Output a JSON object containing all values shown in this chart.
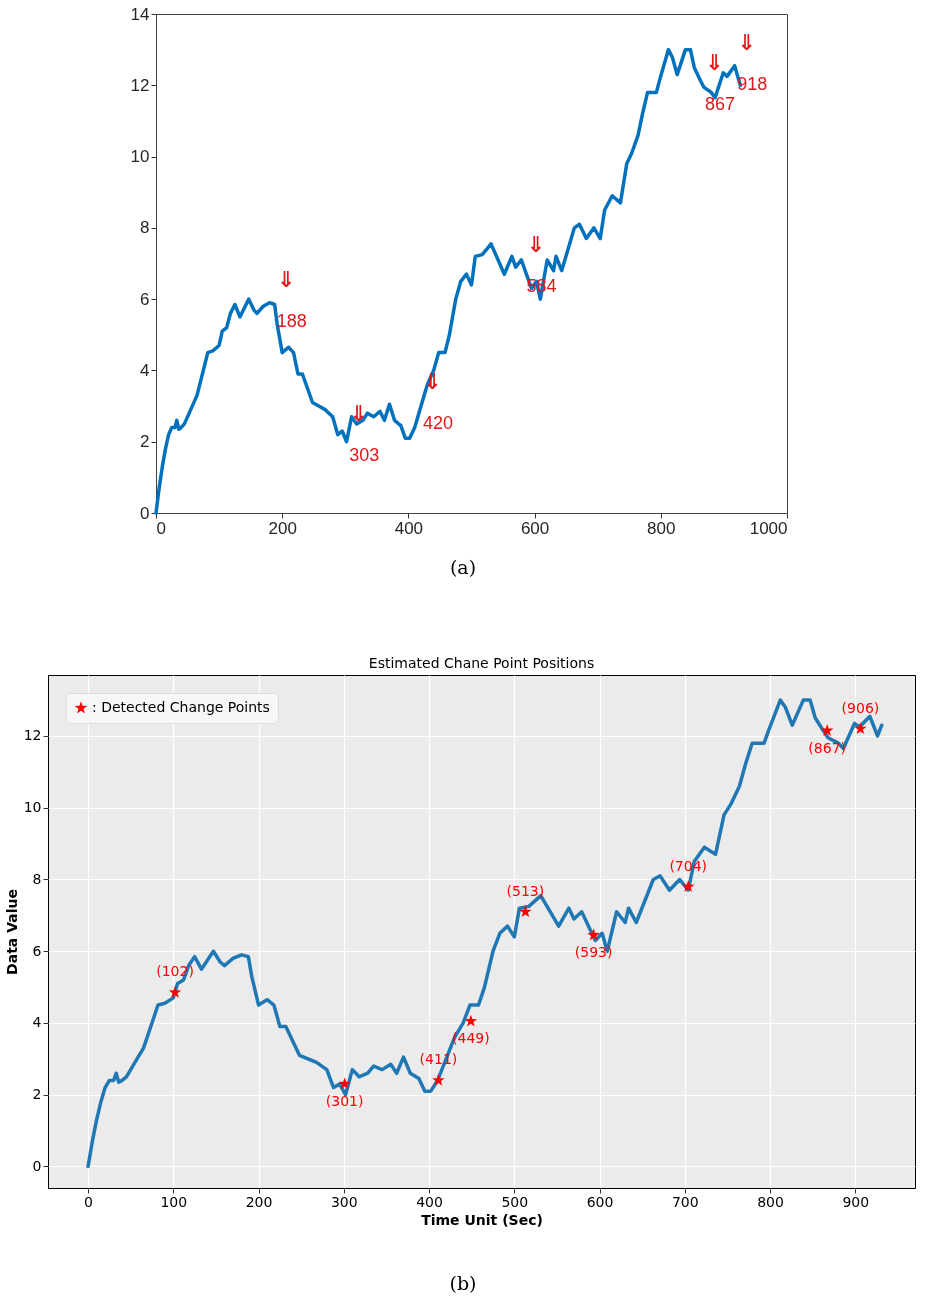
{
  "chart_data": [
    {
      "type": "line",
      "x": [
        0,
        5,
        10,
        15,
        20,
        25,
        30,
        33,
        36,
        40,
        45,
        55,
        65,
        75,
        82,
        90,
        100,
        105,
        112,
        118,
        125,
        133,
        140,
        147,
        155,
        160,
        170,
        180,
        188,
        192,
        200,
        210,
        218,
        225,
        232,
        240,
        248,
        258,
        268,
        280,
        288,
        295,
        302,
        310,
        318,
        328,
        335,
        345,
        355,
        362,
        370,
        378,
        388,
        395,
        402,
        410,
        420,
        430,
        440,
        448,
        458,
        465,
        475,
        483,
        492,
        500,
        506,
        517,
        531,
        552,
        564,
        570,
        579,
        595,
        603,
        609,
        620,
        630,
        634,
        643,
        653,
        663,
        671,
        682,
        694,
        704,
        711,
        723,
        736,
        746,
        754,
        764,
        771,
        779,
        793,
        799,
        812,
        818,
        826,
        839,
        847,
        853,
        861,
        868,
        880,
        886,
        899,
        905,
        917,
        926
      ],
      "series": [
        {
          "color": "#0072bd",
          "values": [
            0,
            0.7,
            1.3,
            1.8,
            2.2,
            2.4,
            2.4,
            2.6,
            2.35,
            2.4,
            2.5,
            2.9,
            3.3,
            4.0,
            4.5,
            4.55,
            4.7,
            5.1,
            5.2,
            5.6,
            5.85,
            5.5,
            5.75,
            6.0,
            5.7,
            5.6,
            5.8,
            5.9,
            5.85,
            5.3,
            4.5,
            4.65,
            4.5,
            3.9,
            3.9,
            3.5,
            3.1,
            3.0,
            2.9,
            2.7,
            2.2,
            2.3,
            2.0,
            2.7,
            2.5,
            2.6,
            2.8,
            2.7,
            2.85,
            2.6,
            3.05,
            2.6,
            2.45,
            2.1,
            2.1,
            2.4,
            3.0,
            3.6,
            4.0,
            4.5,
            4.5,
            5.0,
            6.0,
            6.5,
            6.7,
            6.4,
            7.2,
            7.25,
            7.55,
            6.7,
            7.2,
            6.9,
            7.1,
            6.3,
            6.5,
            6.0,
            7.1,
            6.8,
            7.2,
            6.8,
            7.4,
            8.0,
            8.1,
            7.7,
            8.0,
            7.7,
            8.5,
            8.9,
            8.7,
            9.8,
            10.1,
            10.6,
            11.2,
            11.8,
            11.8,
            12.2,
            13.0,
            12.8,
            12.3,
            13.0,
            13.0,
            12.5,
            12.2,
            11.95,
            11.8,
            11.65,
            12.35,
            12.25,
            12.55,
            12.0
          ]
        }
      ],
      "xlim": [
        0,
        1000
      ],
      "xticks": [
        0,
        200,
        400,
        600,
        800,
        1000
      ],
      "ylim": [
        0,
        14
      ],
      "yticks": [
        0,
        2,
        4,
        6,
        8,
        10,
        12,
        14
      ],
      "annotations": [
        {
          "text": "⇓",
          "x": 188,
          "y": 5.85
        },
        {
          "text": "188",
          "x": 188,
          "y": 5.85
        },
        {
          "text": "⇓",
          "x": 303,
          "y": 2.1
        },
        {
          "text": "303",
          "x": 303,
          "y": 2.1
        },
        {
          "text": "⇓",
          "x": 420,
          "y": 3.0
        },
        {
          "text": "420",
          "x": 420,
          "y": 3.0
        },
        {
          "text": "⇓",
          "x": 584,
          "y": 6.85
        },
        {
          "text": "584",
          "x": 584,
          "y": 6.85
        },
        {
          "text": "⇓",
          "x": 867,
          "y": 11.95
        },
        {
          "text": "867",
          "x": 867,
          "y": 11.95
        },
        {
          "text": "⇓",
          "x": 918,
          "y": 12.5
        },
        {
          "text": "918",
          "x": 918,
          "y": 12.5
        },
        "(a)"
      ]
    },
    {
      "type": "line",
      "title": "Estimated Chane Point Positions",
      "xlabel": "Time Unit (Sec)",
      "ylabel": "Data Value",
      "x": [
        0,
        5,
        10,
        15,
        20,
        25,
        30,
        33,
        36,
        40,
        45,
        55,
        65,
        75,
        82,
        90,
        100,
        105,
        112,
        118,
        125,
        133,
        140,
        147,
        155,
        160,
        170,
        180,
        188,
        192,
        200,
        210,
        218,
        225,
        232,
        240,
        248,
        258,
        268,
        280,
        288,
        295,
        302,
        310,
        318,
        328,
        335,
        345,
        355,
        362,
        370,
        378,
        388,
        395,
        402,
        410,
        420,
        430,
        440,
        448,
        458,
        465,
        475,
        483,
        492,
        500,
        506,
        517,
        531,
        552,
        564,
        570,
        579,
        595,
        603,
        609,
        620,
        630,
        634,
        643,
        653,
        663,
        671,
        682,
        694,
        704,
        711,
        723,
        736,
        746,
        754,
        764,
        771,
        779,
        793,
        799,
        812,
        818,
        826,
        839,
        847,
        853,
        861,
        868,
        880,
        886,
        899,
        905,
        917,
        926,
        931
      ],
      "series": [
        {
          "color": "#1f77b4",
          "values": [
            0,
            0.7,
            1.3,
            1.8,
            2.2,
            2.4,
            2.4,
            2.6,
            2.35,
            2.4,
            2.5,
            2.9,
            3.3,
            4.0,
            4.5,
            4.55,
            4.7,
            5.1,
            5.2,
            5.6,
            5.85,
            5.5,
            5.75,
            6.0,
            5.7,
            5.6,
            5.8,
            5.9,
            5.85,
            5.3,
            4.5,
            4.65,
            4.5,
            3.9,
            3.9,
            3.5,
            3.1,
            3.0,
            2.9,
            2.7,
            2.2,
            2.3,
            2.0,
            2.7,
            2.5,
            2.6,
            2.8,
            2.7,
            2.85,
            2.6,
            3.05,
            2.6,
            2.45,
            2.1,
            2.1,
            2.4,
            3.0,
            3.6,
            4.0,
            4.5,
            4.5,
            5.0,
            6.0,
            6.5,
            6.7,
            6.4,
            7.2,
            7.25,
            7.55,
            6.7,
            7.2,
            6.9,
            7.1,
            6.3,
            6.5,
            6.0,
            7.1,
            6.8,
            7.2,
            6.8,
            7.4,
            8.0,
            8.1,
            7.7,
            8.0,
            7.7,
            8.5,
            8.9,
            8.7,
            9.8,
            10.1,
            10.6,
            11.2,
            11.8,
            11.8,
            12.2,
            13.0,
            12.8,
            12.3,
            13.0,
            13.0,
            12.5,
            12.2,
            11.95,
            11.8,
            11.65,
            12.35,
            12.25,
            12.55,
            12.0,
            12.3
          ]
        },
        {
          "type": "scatter",
          "name": ": Detected Change Points",
          "color": "#ff0000",
          "marker": "star",
          "x": [
            102,
            301,
            411,
            449,
            513,
            593,
            704,
            867,
            906
          ],
          "values": [
            4.85,
            2.3,
            2.4,
            4.05,
            7.1,
            6.45,
            7.8,
            12.15,
            12.2
          ]
        }
      ],
      "xlim": [
        -47,
        970
      ],
      "xticks": [
        0,
        100,
        200,
        300,
        400,
        500,
        600,
        700,
        800,
        900
      ],
      "ylim": [
        -0.6,
        13.7
      ],
      "yticks": [
        0,
        2,
        4,
        6,
        8,
        10,
        12
      ],
      "grid": true,
      "legend": "top left",
      "annotations": [
        {
          "text": "(102)",
          "x": 102,
          "y": 4.85
        },
        {
          "text": "(301)",
          "x": 301,
          "y": 2.3
        },
        {
          "text": "(411)",
          "x": 411,
          "y": 2.4
        },
        {
          "text": "(449)",
          "x": 449,
          "y": 4.05
        },
        {
          "text": "(513)",
          "x": 513,
          "y": 7.1
        },
        {
          "text": "(593)",
          "x": 593,
          "y": 6.45
        },
        {
          "text": "(704)",
          "x": 704,
          "y": 7.8
        },
        {
          "text": "(867)",
          "x": 867,
          "y": 12.15
        },
        {
          "text": "(906)",
          "x": 906,
          "y": 12.2
        },
        "(b)"
      ]
    }
  ]
}
